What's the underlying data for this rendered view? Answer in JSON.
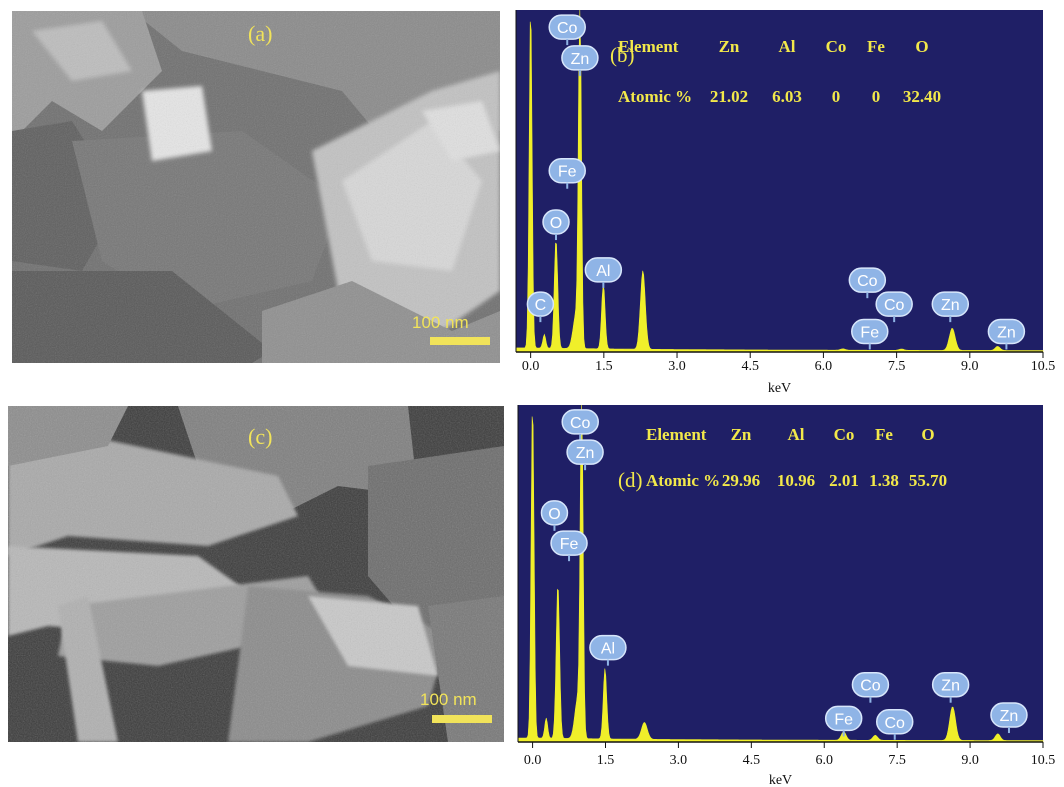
{
  "colors": {
    "spectrum_bg": "#1f1f66",
    "spectrum_fill": "#f0ef2a",
    "table_text": "#f2e84a",
    "label_badge": "#8fb4e6",
    "label_text": "#ffffff",
    "sem_text": "#f1e35a",
    "axis": "#111111"
  },
  "sem_panels": [
    {
      "label": "(a)",
      "scale_text": "100 nm"
    },
    {
      "label": "(c)",
      "scale_text": "100 nm"
    }
  ],
  "chart_data": [
    {
      "type": "area",
      "panel_label": "(b)",
      "xlabel": "keV",
      "xlim": [
        -0.3,
        10.5
      ],
      "x_ticks": [
        0.0,
        1.5,
        3.0,
        4.5,
        6.0,
        7.5,
        9.0,
        10.5
      ],
      "x_tick_labels": [
        "0.0",
        "1.5",
        "3.0",
        "4.5",
        "6.0",
        "7.5",
        "9.0",
        "10.5"
      ],
      "ylim": [
        0,
        100
      ],
      "table": {
        "header": [
          "Element",
          "Zn",
          "Al",
          "Co",
          "Fe",
          "O"
        ],
        "row": [
          "Atomic %",
          "21.02",
          "6.03",
          "0",
          "0",
          "32.40"
        ]
      },
      "peaks": [
        {
          "x": 0.0,
          "y": 100,
          "w": 0.03
        },
        {
          "x": 0.28,
          "y": 4,
          "w": 0.03
        },
        {
          "x": 0.52,
          "y": 32,
          "w": 0.035
        },
        {
          "x": 0.93,
          "y": 10,
          "w": 0.06
        },
        {
          "x": 1.01,
          "y": 100,
          "w": 0.03
        },
        {
          "x": 1.49,
          "y": 19,
          "w": 0.035
        },
        {
          "x": 2.3,
          "y": 23,
          "w": 0.05
        },
        {
          "x": 6.4,
          "y": 0.4,
          "w": 0.05
        },
        {
          "x": 7.6,
          "y": 0.4,
          "w": 0.05
        },
        {
          "x": 8.64,
          "y": 6.5,
          "w": 0.06
        },
        {
          "x": 9.57,
          "y": 1.2,
          "w": 0.05
        }
      ],
      "element_labels": [
        {
          "text": "Co",
          "x": 0.75,
          "y": 95
        },
        {
          "text": "Zn",
          "x": 1.01,
          "y": 86
        },
        {
          "text": "Fe",
          "x": 0.75,
          "y": 53
        },
        {
          "text": "O",
          "x": 0.52,
          "y": 38
        },
        {
          "text": "Al",
          "x": 1.49,
          "y": 24
        },
        {
          "text": "C",
          "x": 0.2,
          "y": 14
        },
        {
          "text": "Co",
          "x": 6.9,
          "y": 21
        },
        {
          "text": "Co",
          "x": 7.45,
          "y": 14
        },
        {
          "text": "Zn",
          "x": 8.6,
          "y": 14
        },
        {
          "text": "Fe",
          "x": 6.95,
          "y": 6
        },
        {
          "text": "Zn",
          "x": 9.75,
          "y": 6
        }
      ]
    },
    {
      "type": "area",
      "panel_label": "(d)",
      "xlabel": "keV",
      "xlim": [
        -0.3,
        10.5
      ],
      "x_ticks": [
        0.0,
        1.5,
        3.0,
        4.5,
        6.0,
        7.5,
        9.0,
        10.5
      ],
      "x_tick_labels": [
        "0.0",
        "1.5",
        "3.0",
        "4.5",
        "6.0",
        "7.5",
        "9.0",
        "10.5"
      ],
      "ylim": [
        0,
        100
      ],
      "table": {
        "header": [
          "Element",
          "Zn",
          "Al",
          "Co",
          "Fe",
          "O"
        ],
        "row": [
          "Atomic %",
          "29.96",
          "10.96",
          "2.01",
          "1.38",
          "55.70"
        ]
      },
      "peaks": [
        {
          "x": 0.0,
          "y": 100,
          "w": 0.03
        },
        {
          "x": 0.28,
          "y": 6,
          "w": 0.03
        },
        {
          "x": 0.52,
          "y": 46,
          "w": 0.035
        },
        {
          "x": 0.93,
          "y": 12,
          "w": 0.06
        },
        {
          "x": 1.01,
          "y": 100,
          "w": 0.03
        },
        {
          "x": 1.49,
          "y": 21,
          "w": 0.035
        },
        {
          "x": 2.3,
          "y": 5,
          "w": 0.06
        },
        {
          "x": 6.4,
          "y": 2.5,
          "w": 0.05
        },
        {
          "x": 7.05,
          "y": 1.5,
          "w": 0.05
        },
        {
          "x": 8.64,
          "y": 10,
          "w": 0.06
        },
        {
          "x": 9.57,
          "y": 2,
          "w": 0.05
        }
      ],
      "element_labels": [
        {
          "text": "Co",
          "x": 0.98,
          "y": 95
        },
        {
          "text": "Zn",
          "x": 1.08,
          "y": 86
        },
        {
          "text": "O",
          "x": 0.45,
          "y": 68
        },
        {
          "text": "Fe",
          "x": 0.75,
          "y": 59
        },
        {
          "text": "Al",
          "x": 1.55,
          "y": 28
        },
        {
          "text": "Co",
          "x": 6.95,
          "y": 17
        },
        {
          "text": "Fe",
          "x": 6.4,
          "y": 7
        },
        {
          "text": "Co",
          "x": 7.45,
          "y": 6
        },
        {
          "text": "Zn",
          "x": 8.6,
          "y": 17
        },
        {
          "text": "Zn",
          "x": 9.8,
          "y": 8
        }
      ]
    }
  ]
}
